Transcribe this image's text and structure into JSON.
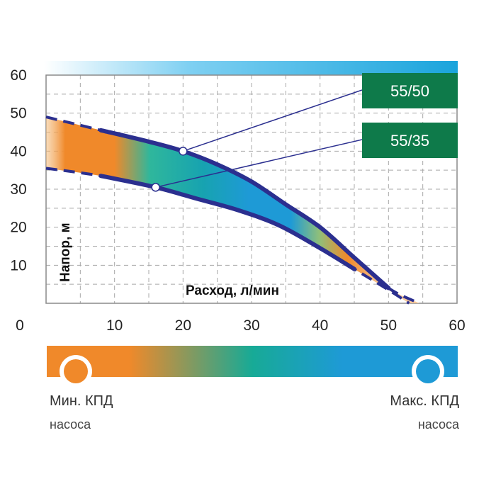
{
  "chart_data": {
    "type": "area",
    "title": "",
    "xlabel": "Расход, л/мин",
    "ylabel": "Напор, м",
    "xlim": [
      0,
      60
    ],
    "ylim": [
      0,
      60
    ],
    "x_ticks": [
      "0",
      "10",
      "20",
      "30",
      "40",
      "50",
      "60"
    ],
    "y_ticks": [
      "10",
      "20",
      "30",
      "40",
      "50",
      "60"
    ],
    "grid": true,
    "series": [
      {
        "name": "55/50",
        "color": "#2b2f8f",
        "x": [
          0,
          8,
          15,
          20,
          25,
          30,
          35,
          40,
          45,
          50,
          54.5
        ],
        "y": [
          49,
          45.5,
          42.5,
          40,
          36.5,
          32,
          26,
          20,
          12,
          4,
          0
        ],
        "marker": [
          20,
          40
        ]
      },
      {
        "name": "55/35",
        "color": "#2b2f8f",
        "x": [
          0,
          8,
          16,
          22,
          28,
          34,
          40,
          45,
          50,
          53
        ],
        "y": [
          35.5,
          33.5,
          30.5,
          27.5,
          24.5,
          20.5,
          14.5,
          9,
          3.5,
          0
        ],
        "marker": [
          16,
          30.5
        ]
      }
    ],
    "efficiency_scale": {
      "min_label": "Мин. КПД",
      "max_label": "Макс. КПД",
      "sub_label": "насоса",
      "min_color": "#f0892a",
      "max_color": "#1e9ad6"
    }
  }
}
